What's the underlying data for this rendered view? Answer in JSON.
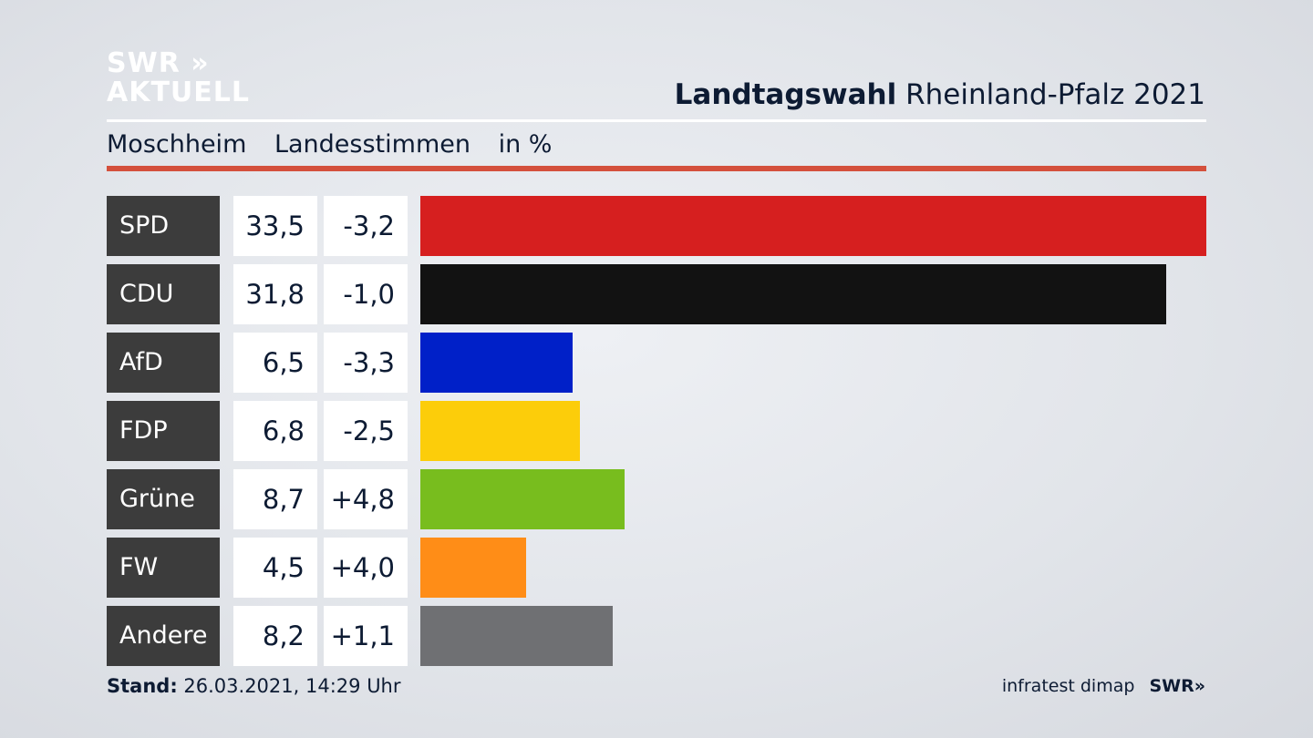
{
  "brand": {
    "line1": "SWR »",
    "line2": "AKTUELL"
  },
  "headline": {
    "bold": "Landtagswahl",
    "rest": "Rheinland-Pfalz 2021"
  },
  "subheader": {
    "place": "Moschheim",
    "vote": "Landesstimmen",
    "unit": "in %"
  },
  "footer": {
    "stand_label": "Stand:",
    "stand_value": "26.03.2021, 14:29 Uhr",
    "source": "infratest dimap",
    "source_logo": "SWR»"
  },
  "chart_data": {
    "type": "bar",
    "orientation": "horizontal",
    "categories": [
      "SPD",
      "CDU",
      "AfD",
      "FDP",
      "Grüne",
      "FW",
      "Andere"
    ],
    "values": [
      33.5,
      31.8,
      6.5,
      6.8,
      8.7,
      4.5,
      8.2
    ],
    "value_labels": [
      "33,5",
      "31,8",
      "6,5",
      "6,8",
      "8,7",
      "4,5",
      "8,2"
    ],
    "change_labels": [
      "-3,2",
      "-1,0",
      "-3,3",
      "-2,5",
      "+4,8",
      "+4,0",
      "+1,1"
    ],
    "colors": [
      "#d61f1f",
      "#121212",
      "#0020c8",
      "#fccd0a",
      "#78bd1e",
      "#ff8d17",
      "#6f7073"
    ],
    "xlim": [
      0,
      33.5
    ]
  }
}
